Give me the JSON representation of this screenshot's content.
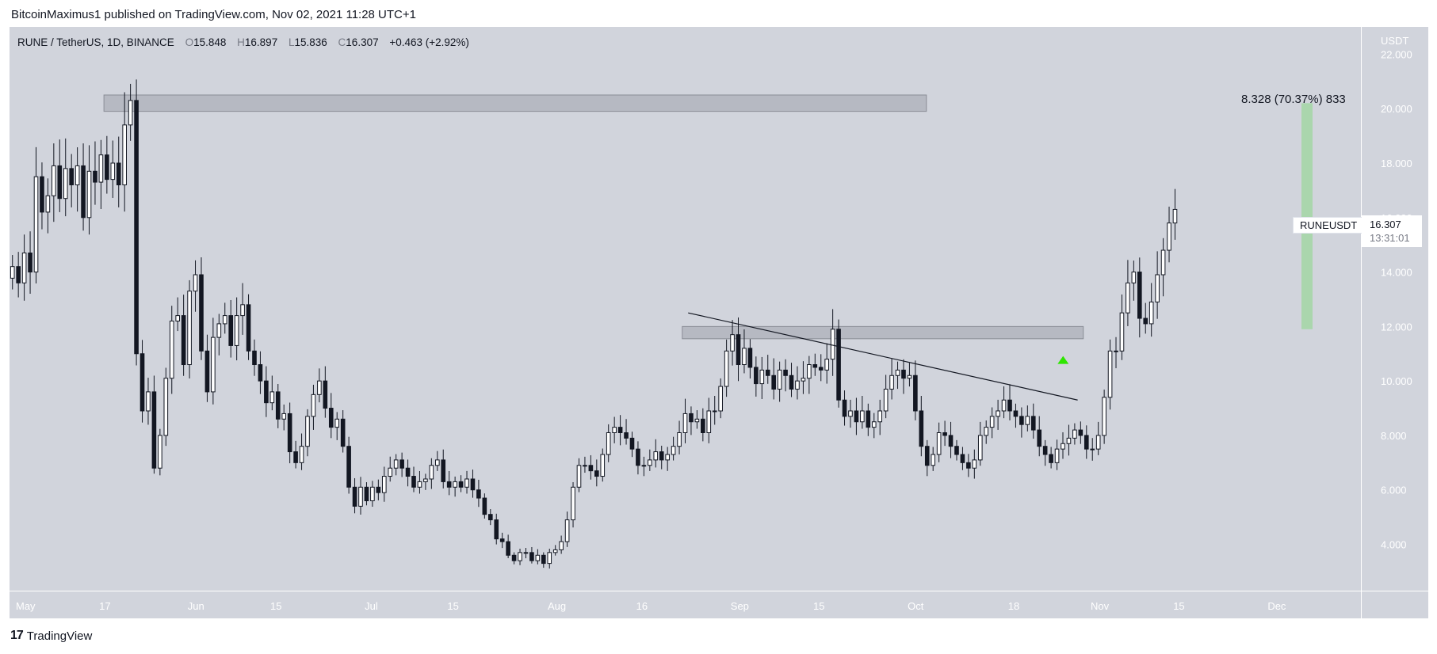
{
  "header": {
    "publisher_line": "BitcoinMaximus1 published on TradingView.com, Nov 02, 2021 11:28 UTC+1"
  },
  "legend": {
    "symbol": "RUNE / TetherUS, 1D, BINANCE",
    "o_label": "O",
    "o_value": "15.848",
    "h_label": "H",
    "h_value": "16.897",
    "l_label": "L",
    "l_value": "15.836",
    "c_label": "C",
    "c_value": "16.307",
    "change": "+0.463 (+2.92%)"
  },
  "price_axis": {
    "unit": "USDT",
    "ticks": [
      "22.000",
      "20.000",
      "18.000",
      "16.000",
      "14.000",
      "12.000",
      "10.000",
      "8.000",
      "6.000",
      "4.000"
    ]
  },
  "time_axis": {
    "ticks": [
      "May",
      "17",
      "Jun",
      "15",
      "Jul",
      "15",
      "Aug",
      "16",
      "Sep",
      "15",
      "Oct",
      "18",
      "Nov",
      "15",
      "Dec"
    ]
  },
  "last_price": {
    "symbol": "RUNEUSDT",
    "price": "16.307",
    "countdown": "13:31:01"
  },
  "measurement": {
    "label": "8.328 (70.37%) 833"
  },
  "footer": {
    "brand": "TradingView",
    "brand_mark": "17"
  },
  "colors": {
    "background": "#d1d4dc",
    "candle_up_fill": "#ffffff",
    "candle_down_fill": "#131722",
    "candle_outline": "#131722",
    "zone_fill": "#b2b5be",
    "measure_fill": "#a5d6a7",
    "arrow_green": "#2ee600",
    "axis_text": "#ffffff"
  },
  "chart_data": {
    "type": "candlestick",
    "symbol": "RUNE / TetherUS",
    "interval": "1D",
    "exchange": "BINANCE",
    "y_axis_unit": "USDT",
    "ylim": [
      2.3,
      23.0
    ],
    "y_ticks": [
      4,
      6,
      8,
      10,
      12,
      14,
      16,
      18,
      20,
      22
    ],
    "x_range": [
      "2021-05-01",
      "2021-12-16"
    ],
    "x_ticks": [
      {
        "date": "2021-05-01",
        "label": "May"
      },
      {
        "date": "2021-05-17",
        "label": "17"
      },
      {
        "date": "2021-06-01",
        "label": "Jun"
      },
      {
        "date": "2021-06-15",
        "label": "15"
      },
      {
        "date": "2021-07-01",
        "label": "Jul"
      },
      {
        "date": "2021-07-15",
        "label": "15"
      },
      {
        "date": "2021-08-01",
        "label": "Aug"
      },
      {
        "date": "2021-08-16",
        "label": "16"
      },
      {
        "date": "2021-09-01",
        "label": "Sep"
      },
      {
        "date": "2021-09-15",
        "label": "15"
      },
      {
        "date": "2021-10-01",
        "label": "Oct"
      },
      {
        "date": "2021-10-18",
        "label": "18"
      },
      {
        "date": "2021-11-01",
        "label": "Nov"
      },
      {
        "date": "2021-11-15",
        "label": "15"
      },
      {
        "date": "2021-12-01",
        "label": "Dec"
      }
    ],
    "first_date": "2021-05-01",
    "candles_close": [
      14.2,
      13.6,
      14.7,
      14.0,
      17.5,
      16.2,
      16.8,
      17.9,
      16.7,
      17.8,
      17.2,
      17.9,
      16.0,
      17.7,
      17.3,
      18.3,
      17.4,
      18.0,
      17.2,
      19.4,
      20.3,
      11.0,
      8.9,
      9.6,
      6.8,
      8.0,
      10.1,
      12.2,
      12.4,
      10.6,
      13.3,
      13.9,
      11.1,
      9.6,
      11.6,
      12.1,
      12.4,
      11.3,
      12.4,
      12.8,
      11.1,
      10.6,
      10.0,
      9.2,
      9.6,
      8.6,
      8.8,
      7.4,
      7.0,
      7.6,
      8.7,
      9.5,
      10.0,
      9.0,
      8.3,
      8.6,
      7.6,
      6.1,
      5.4,
      6.1,
      5.6,
      6.1,
      5.9,
      6.5,
      6.8,
      7.1,
      6.8,
      6.5,
      6.1,
      6.3,
      6.4,
      6.9,
      7.1,
      6.3,
      6.1,
      6.3,
      6.1,
      6.4,
      6.0,
      5.7,
      5.1,
      4.9,
      4.2,
      4.1,
      3.6,
      3.4,
      3.7,
      3.7,
      3.4,
      3.6,
      3.3,
      3.7,
      3.8,
      4.1,
      4.9,
      6.1,
      6.9,
      6.9,
      6.7,
      6.5,
      7.3,
      8.1,
      8.3,
      8.1,
      7.9,
      7.5,
      6.9,
      6.9,
      7.1,
      7.4,
      7.1,
      7.3,
      7.6,
      8.1,
      8.8,
      8.5,
      8.6,
      8.1,
      8.9,
      8.9,
      9.8,
      11.1,
      11.7,
      10.6,
      11.2,
      10.5,
      9.9,
      10.4,
      10.2,
      9.7,
      10.4,
      10.2,
      9.7,
      10.0,
      10.1,
      10.6,
      10.5,
      10.4,
      10.8,
      11.9,
      9.3,
      8.7,
      8.9,
      8.5,
      8.9,
      8.3,
      8.5,
      8.9,
      9.7,
      10.2,
      10.4,
      10.1,
      10.2,
      8.9,
      7.6,
      6.9,
      7.3,
      8.1,
      8.0,
      7.6,
      7.3,
      7.0,
      6.8,
      7.1,
      8.0,
      8.3,
      8.7,
      8.9,
      9.3,
      8.9,
      8.7,
      8.4,
      8.7,
      8.2,
      7.6,
      7.3,
      7.0,
      7.5,
      7.7,
      7.9,
      8.2,
      8.0,
      7.5,
      7.5,
      8.0,
      9.4,
      11.1,
      11.1,
      12.5,
      13.6,
      14.0,
      12.3,
      12.1,
      12.9,
      13.9,
      14.8,
      15.8,
      16.3
    ]
  }
}
